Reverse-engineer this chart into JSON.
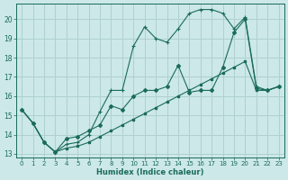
{
  "xlabel": "Humidex (Indice chaleur)",
  "bg_color": "#cce8e8",
  "grid_color": "#b0d0d0",
  "line_color": "#1a6b5a",
  "xlim": [
    -0.5,
    23.5
  ],
  "ylim": [
    12.8,
    20.8
  ],
  "xticks": [
    0,
    1,
    2,
    3,
    4,
    5,
    6,
    7,
    8,
    9,
    10,
    11,
    12,
    13,
    14,
    15,
    16,
    17,
    18,
    19,
    20,
    21,
    22,
    23
  ],
  "yticks": [
    13,
    14,
    15,
    16,
    17,
    18,
    19,
    20
  ],
  "line1_x": [
    0,
    1,
    2,
    3,
    4,
    5,
    6,
    7,
    8,
    9,
    10,
    11,
    12,
    13,
    14,
    15,
    16,
    17,
    18,
    19,
    20,
    21,
    22,
    23
  ],
  "line1_y": [
    15.3,
    14.6,
    13.6,
    13.1,
    13.5,
    13.6,
    14.0,
    15.2,
    16.3,
    16.3,
    18.6,
    19.6,
    19.0,
    18.8,
    19.5,
    20.3,
    20.5,
    20.5,
    20.3,
    19.5,
    20.1,
    16.5,
    16.3,
    16.5
  ],
  "line2_x": [
    0,
    1,
    2,
    3,
    4,
    5,
    6,
    7,
    8,
    9,
    10,
    11,
    12,
    13,
    14,
    15,
    16,
    17,
    18,
    19,
    20,
    21,
    22,
    23
  ],
  "line2_y": [
    15.3,
    14.6,
    13.6,
    13.1,
    13.8,
    13.9,
    14.2,
    14.5,
    15.5,
    15.3,
    16.0,
    16.3,
    16.3,
    16.5,
    17.6,
    16.2,
    16.3,
    16.3,
    17.5,
    19.3,
    20.0,
    16.4,
    16.3,
    16.5
  ],
  "line3_x": [
    0,
    1,
    2,
    3,
    4,
    5,
    6,
    7,
    8,
    9,
    10,
    11,
    12,
    13,
    14,
    15,
    16,
    17,
    18,
    19,
    20,
    21,
    22,
    23
  ],
  "line3_y": [
    15.3,
    14.6,
    13.6,
    13.1,
    13.3,
    13.4,
    13.6,
    13.9,
    14.2,
    14.5,
    14.8,
    15.1,
    15.4,
    15.7,
    16.0,
    16.3,
    16.6,
    16.9,
    17.2,
    17.5,
    17.8,
    16.3,
    16.3,
    16.5
  ]
}
